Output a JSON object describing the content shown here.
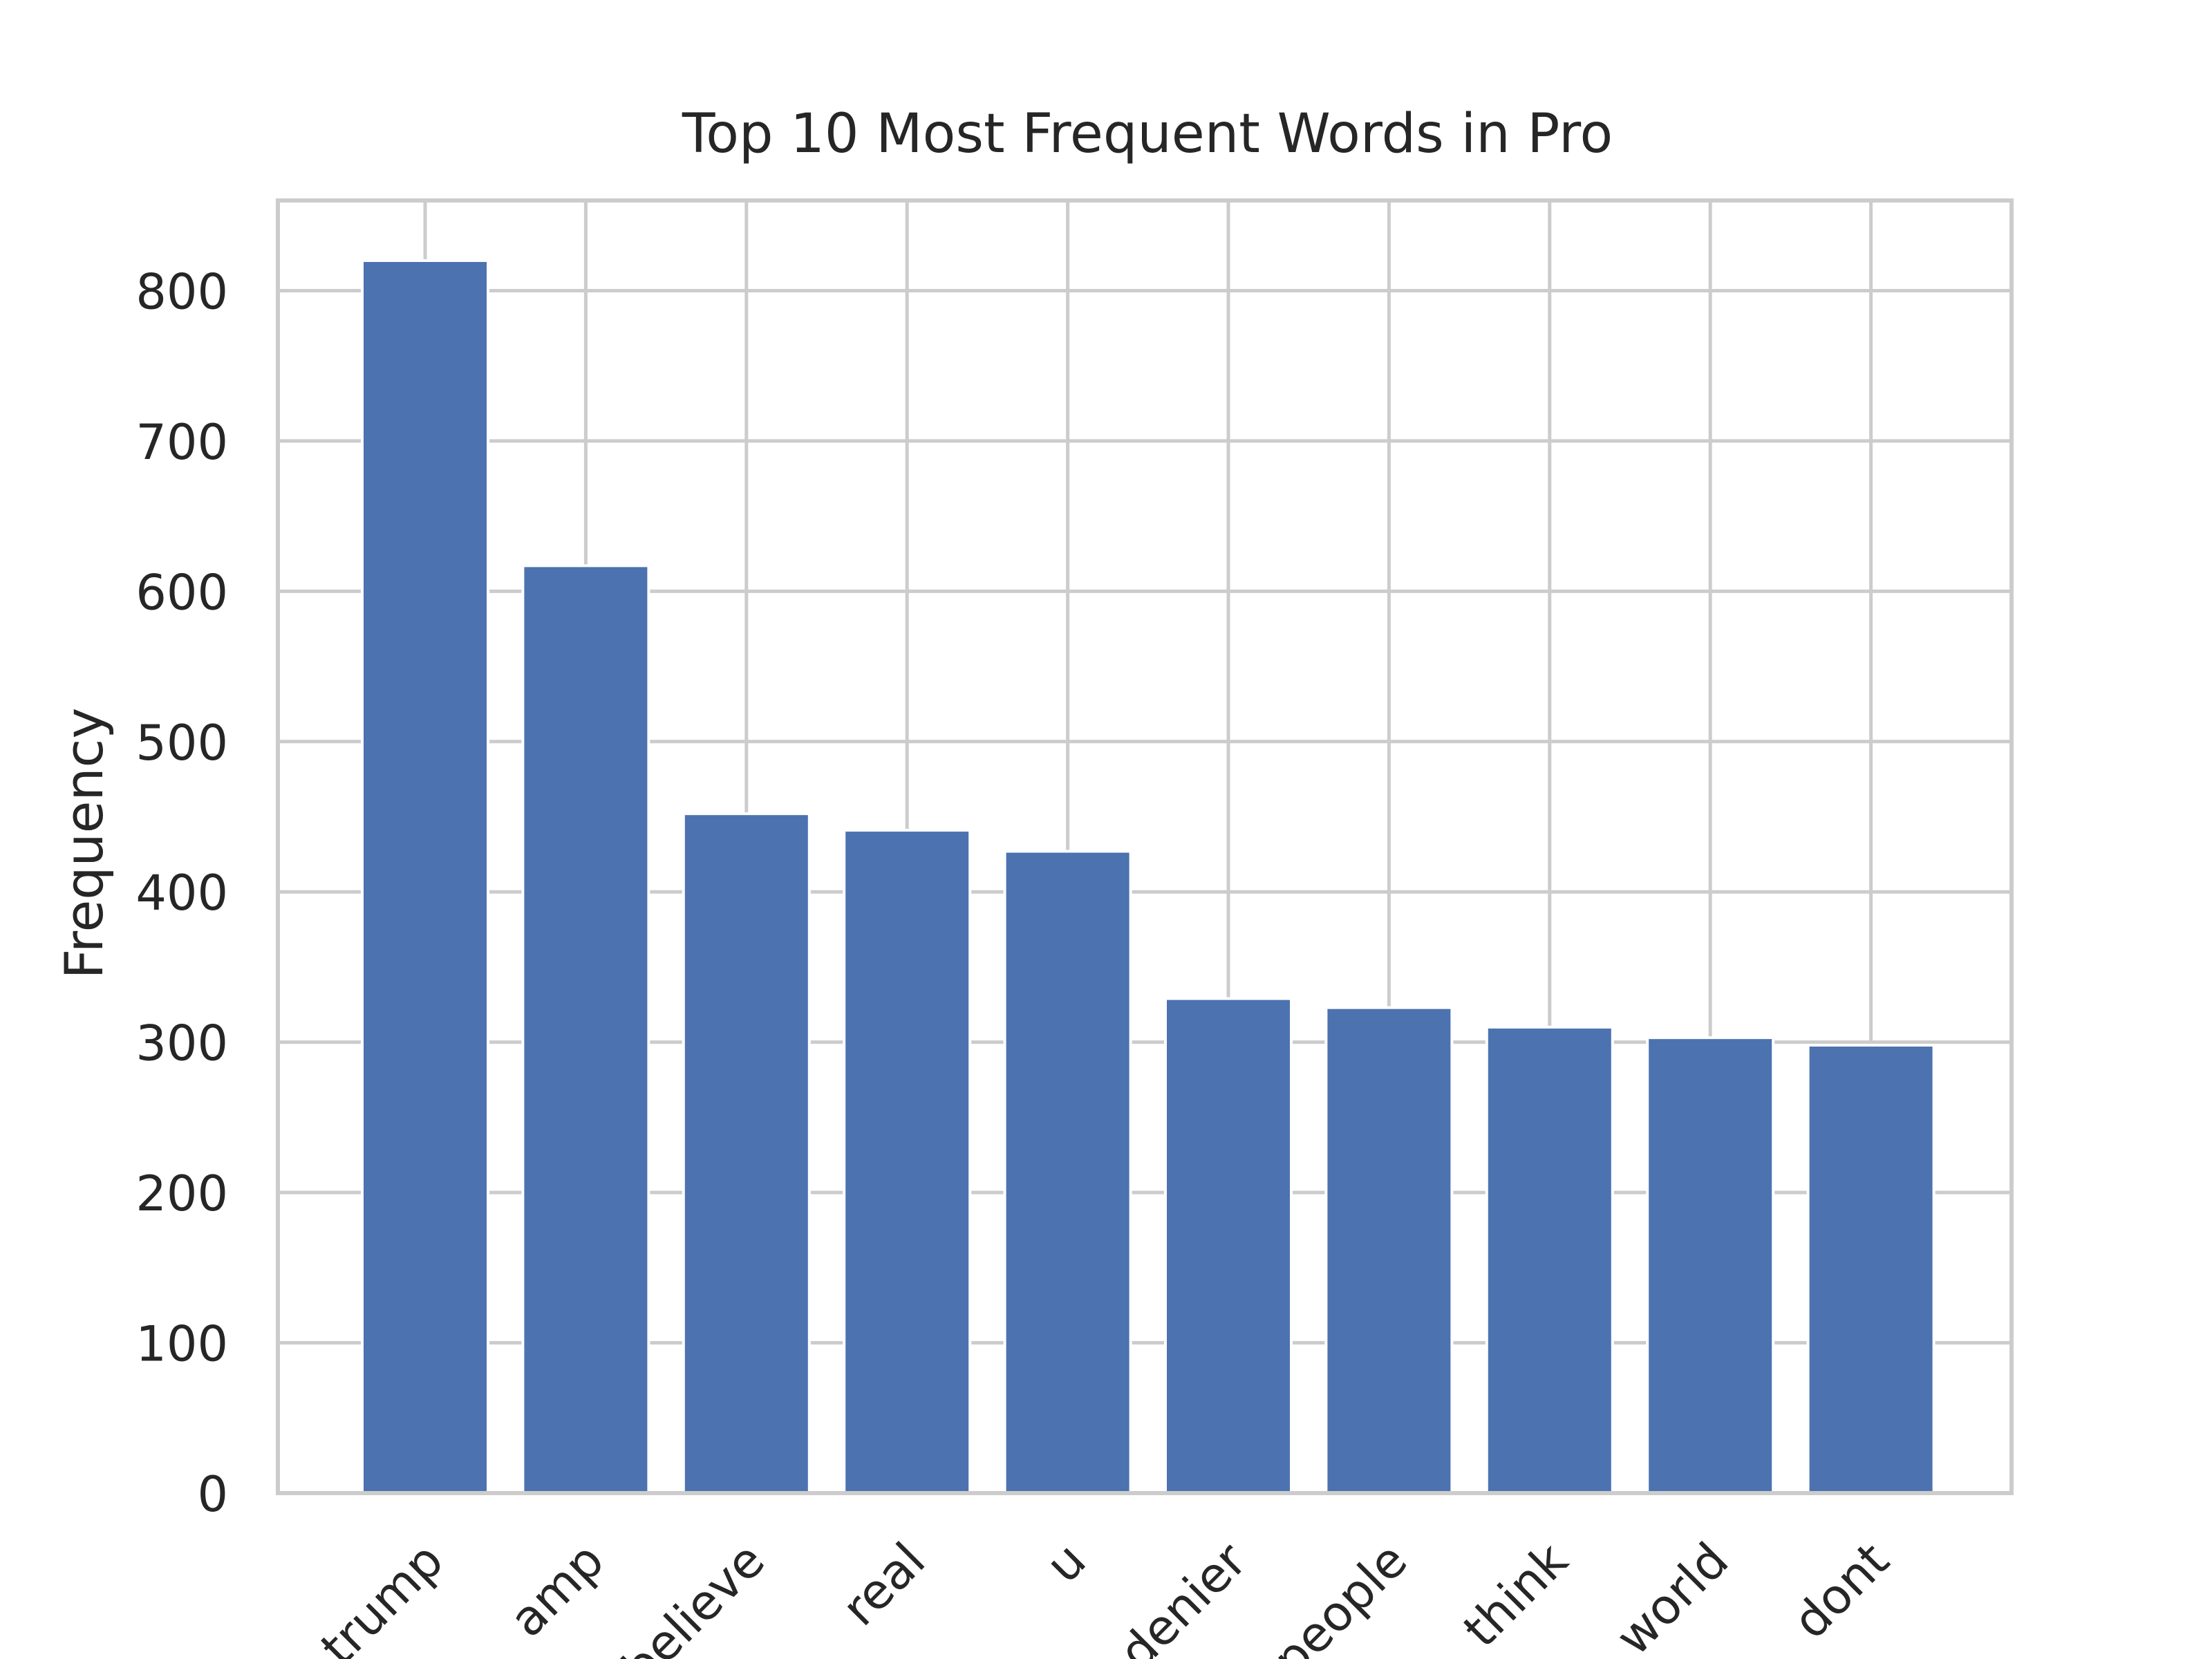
{
  "chart_data": {
    "type": "bar",
    "title": "Top 10 Most Frequent Words in Pro",
    "xlabel": "",
    "ylabel": "Frequency",
    "categories": [
      "trump",
      "amp",
      "believe",
      "real",
      "u",
      "denier",
      "people",
      "think",
      "world",
      "dont"
    ],
    "values": [
      820,
      617,
      452,
      441,
      427,
      329,
      323,
      310,
      303,
      298
    ],
    "ylim": [
      0,
      860
    ],
    "yticks": [
      0,
      100,
      200,
      300,
      400,
      500,
      600,
      700,
      800
    ],
    "grid": true,
    "legend": "none",
    "colors": {
      "bar": "#4c72b0",
      "grid": "#cccccc",
      "frame": "#cccccc",
      "text": "#262626",
      "background": "#ffffff"
    }
  }
}
